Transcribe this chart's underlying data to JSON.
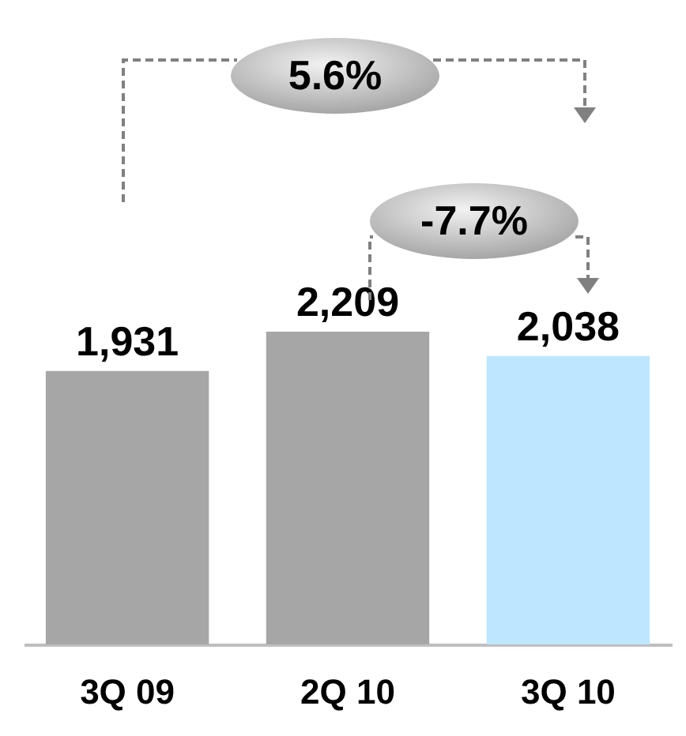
{
  "chart_data": {
    "type": "bar",
    "categories": [
      "3Q 09",
      "2Q 10",
      "3Q 10"
    ],
    "values": [
      1931,
      2209,
      2038
    ],
    "colors": [
      "#a6a6a6",
      "#a6a6a6",
      "#bfe6ff"
    ],
    "value_labels": [
      "1,931",
      "2,209",
      "2,038"
    ],
    "grid": false,
    "legend": false,
    "annotations": [
      "5.6%",
      "-7.7%"
    ]
  }
}
